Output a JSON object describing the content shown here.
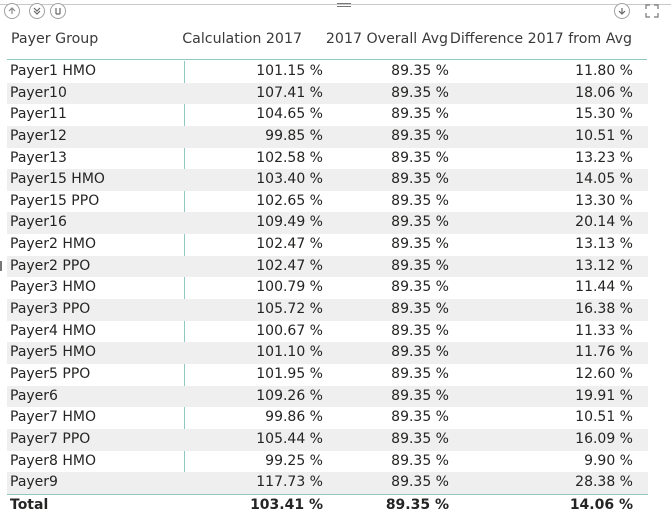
{
  "toolbar": {
    "icons": [
      "drill-up-icon",
      "expand-all-down-icon",
      "go-to-next-level-icon",
      "drill-down-icon",
      "focus-mode-icon"
    ]
  },
  "table": {
    "headers": [
      "Payer Group",
      "Calculation 2017",
      "2017 Overall Avg",
      "Difference 2017 from Avg"
    ],
    "rows": [
      [
        "Payer1 HMO",
        "101.15 %",
        "89.35 %",
        "11.80 %"
      ],
      [
        "Payer10",
        "107.41 %",
        "89.35 %",
        "18.06 %"
      ],
      [
        "Payer11",
        "104.65 %",
        "89.35 %",
        "15.30 %"
      ],
      [
        "Payer12",
        "99.85 %",
        "89.35 %",
        "10.51 %"
      ],
      [
        "Payer13",
        "102.58 %",
        "89.35 %",
        "13.23 %"
      ],
      [
        "Payer15 HMO",
        "103.40 %",
        "89.35 %",
        "14.05 %"
      ],
      [
        "Payer15 PPO",
        "102.65 %",
        "89.35 %",
        "13.30 %"
      ],
      [
        "Payer16",
        "109.49 %",
        "89.35 %",
        "20.14 %"
      ],
      [
        "Payer2 HMO",
        "102.47 %",
        "89.35 %",
        "13.13 %"
      ],
      [
        "Payer2 PPO",
        "102.47 %",
        "89.35 %",
        "13.12 %"
      ],
      [
        "Payer3 HMO",
        "100.79 %",
        "89.35 %",
        "11.44 %"
      ],
      [
        "Payer3 PPO",
        "105.72 %",
        "89.35 %",
        "16.38 %"
      ],
      [
        "Payer4 HMO",
        "100.67 %",
        "89.35 %",
        "11.33 %"
      ],
      [
        "Payer5 HMO",
        "101.10 %",
        "89.35 %",
        "11.76 %"
      ],
      [
        "Payer5 PPO",
        "101.95 %",
        "89.35 %",
        "12.60 %"
      ],
      [
        "Payer6",
        "109.26 %",
        "89.35 %",
        "19.91 %"
      ],
      [
        "Payer7 HMO",
        "99.86 %",
        "89.35 %",
        "10.51 %"
      ],
      [
        "Payer7 PPO",
        "105.44 %",
        "89.35 %",
        "16.09 %"
      ],
      [
        "Payer8 HMO",
        "99.25 %",
        "89.35 %",
        "9.90 %"
      ],
      [
        "Payer9",
        "117.73 %",
        "89.35 %",
        "28.38 %"
      ]
    ],
    "total": [
      "Total",
      "103.41 %",
      "89.35 %",
      "14.06 %"
    ]
  },
  "colors": {
    "accent_line": "#8fc7c1",
    "alt_row": "#efefef",
    "text": "#252423"
  }
}
